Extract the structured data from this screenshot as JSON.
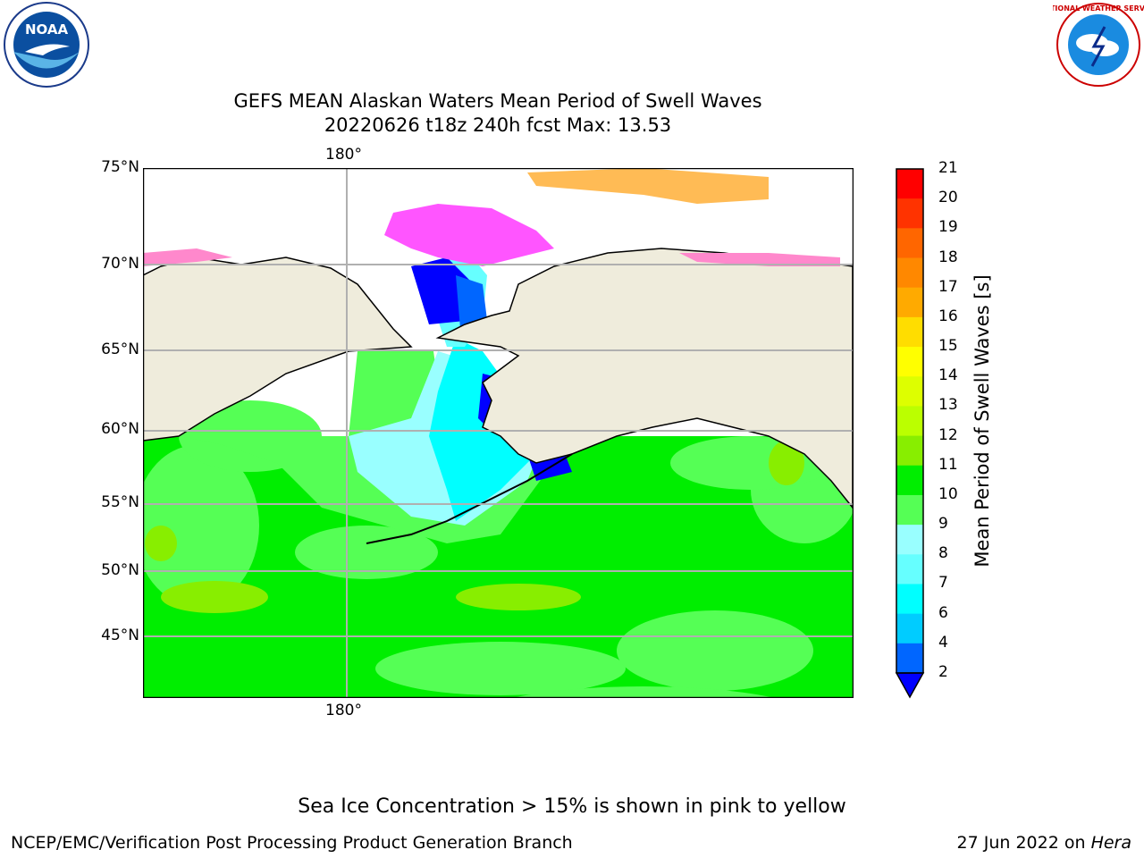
{
  "title_line1": "GEFS MEAN Alaskan Waters Mean Period of Swell Waves",
  "title_line2": "20220626 t18z 240h fcst   Max: 13.53",
  "lon_label_top": "180°",
  "lon_label_bottom": "180°",
  "lat_labels": [
    "75°N",
    "70°N",
    "65°N",
    "60°N",
    "55°N",
    "50°N",
    "45°N"
  ],
  "colorbar": {
    "label": "Mean Period of Swell Waves [s]",
    "ticks": [
      "21",
      "20",
      "19",
      "18",
      "17",
      "16",
      "15",
      "14",
      "13",
      "12",
      "11",
      "10",
      "9",
      "8",
      "7",
      "6",
      "4",
      "2"
    ],
    "colors": [
      "#ff0000",
      "#ff3300",
      "#ff6600",
      "#ff8800",
      "#ffaa00",
      "#ffdd00",
      "#ffff00",
      "#ddff00",
      "#bbff00",
      "#88ee00",
      "#00ee00",
      "#55ff55",
      "#99ffff",
      "#66ffff",
      "#00ffff",
      "#00ccff",
      "#0066ff",
      "#0000ff"
    ]
  },
  "note": "Sea Ice Concentration > 15% is shown in pink to yellow",
  "footer_left": "NCEP/EMC/Verification Post Processing Product Generation Branch",
  "footer_right_date": "27 Jun 2022 on ",
  "footer_right_host": "Hera",
  "logos": {
    "left": "NOAA",
    "right": "NATIONAL WEATHER SERVICE"
  }
}
